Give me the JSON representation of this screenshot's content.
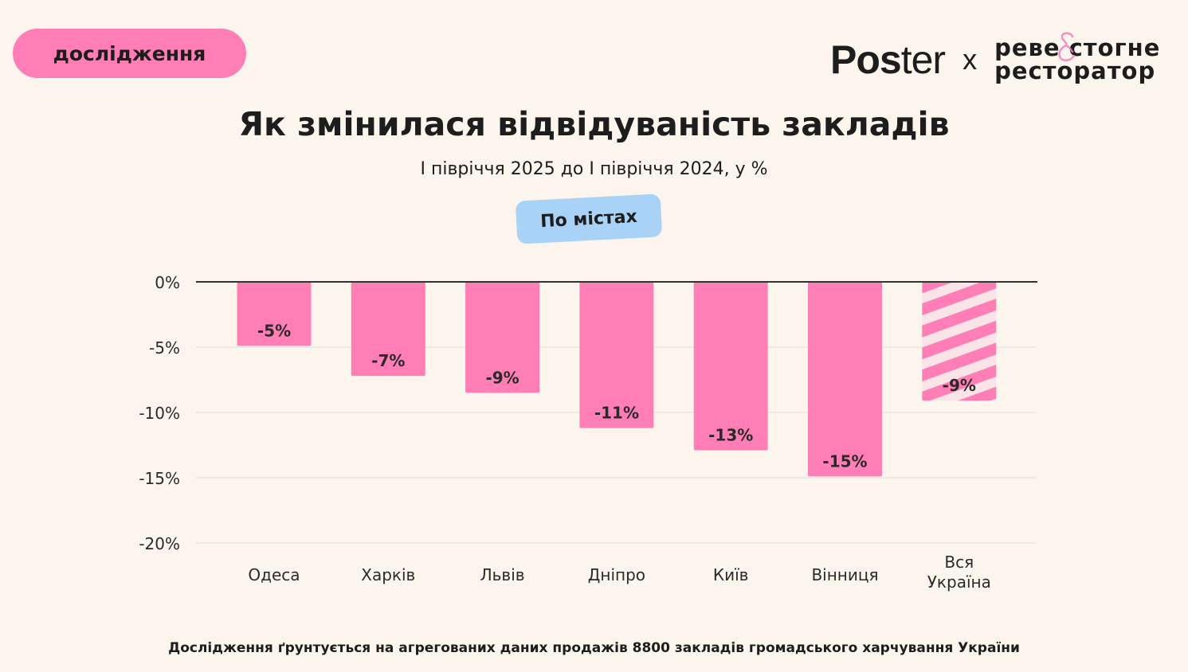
{
  "badge": "дослідження",
  "logo": {
    "brand": "Poster",
    "separator": "x",
    "partner_line1": "реве стогне",
    "partner_line2": "ресторатор",
    "accent": "#ff7eb5"
  },
  "filter_pill": "По містах",
  "footer": "Дослідження ґрунтується на агрегованих даних продажів 8800 закладів громадського харчування України",
  "chart_data": {
    "type": "bar",
    "title": "Як змінилася відвідуваність закладів",
    "subtitle": "І півріччя 2025 до І півріччя 2024, у %",
    "categories": [
      "Одеса",
      "Харків",
      "Львів",
      "Дніпро",
      "Київ",
      "Вінниця",
      "Вся Україна"
    ],
    "values": [
      -4.9,
      -7.2,
      -8.5,
      -11.2,
      -12.9,
      -14.9,
      -9.1
    ],
    "data_labels": [
      "-5%",
      "-7%",
      "-9%",
      "-11%",
      "-13%",
      "-15%",
      "-9%"
    ],
    "ylim": [
      -20,
      0
    ],
    "yticks": [
      0,
      -5,
      -10,
      -15,
      -20
    ],
    "ytick_labels": [
      "0%",
      "-5%",
      "-10%",
      "-15%",
      "-20%"
    ],
    "grid": true,
    "bar_color": "#ff7eb5",
    "striped_categories": [
      "Вся Україна"
    ]
  }
}
